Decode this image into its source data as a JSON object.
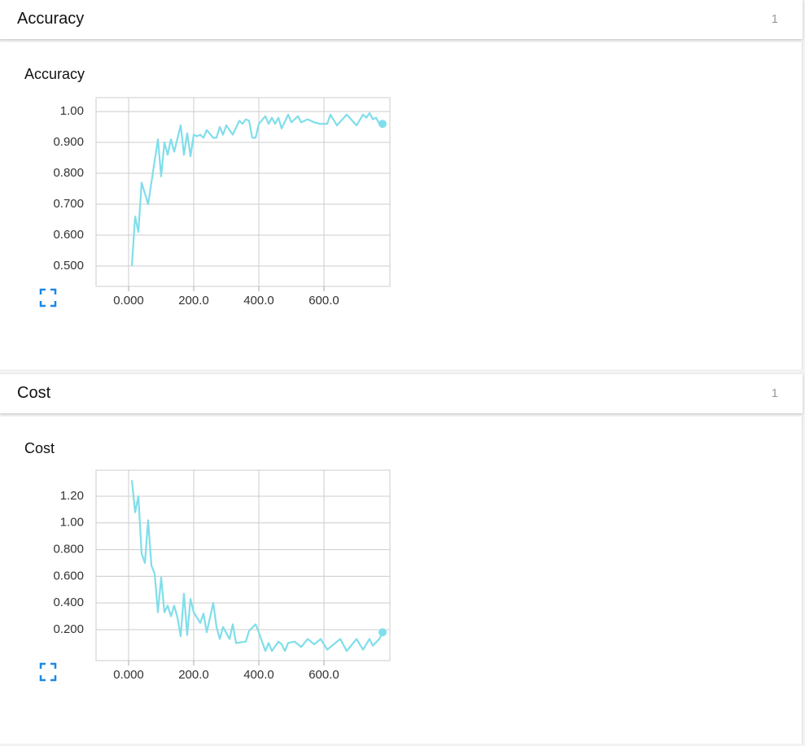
{
  "panels": [
    {
      "title": "Accuracy",
      "count": 1
    },
    {
      "title": "Cost",
      "count": 1
    }
  ],
  "chart_data": [
    {
      "type": "line",
      "title": "Accuracy",
      "x": [
        10,
        20,
        30,
        40,
        60,
        90,
        100,
        110,
        120,
        130,
        140,
        160,
        170,
        180,
        190,
        200,
        210,
        220,
        230,
        240,
        260,
        270,
        280,
        290,
        300,
        320,
        340,
        350,
        360,
        370,
        380,
        390,
        400,
        420,
        430,
        440,
        450,
        460,
        470,
        490,
        500,
        520,
        530,
        550,
        570,
        590,
        610,
        620,
        640,
        670,
        700,
        720,
        730,
        740,
        750,
        760,
        770,
        780
      ],
      "series": [
        {
          "color": "#80deea",
          "values": [
            0.5,
            0.66,
            0.61,
            0.77,
            0.7,
            0.91,
            0.79,
            0.9,
            0.86,
            0.91,
            0.87,
            0.955,
            0.86,
            0.93,
            0.855,
            0.925,
            0.92,
            0.925,
            0.915,
            0.94,
            0.915,
            0.915,
            0.95,
            0.925,
            0.955,
            0.925,
            0.97,
            0.96,
            0.975,
            0.97,
            0.915,
            0.915,
            0.96,
            0.985,
            0.96,
            0.98,
            0.96,
            0.98,
            0.945,
            0.99,
            0.965,
            0.985,
            0.965,
            0.975,
            0.965,
            0.96,
            0.96,
            0.99,
            0.955,
            0.99,
            0.955,
            0.99,
            0.98,
            0.995,
            0.975,
            0.98,
            0.96,
            0.96
          ]
        }
      ],
      "xlim": [
        -100,
        802.5
      ],
      "ylim": [
        0.434,
        1.045
      ],
      "xticks": [
        {
          "value": 0,
          "label": "0.000"
        },
        {
          "value": 200,
          "label": "200.0"
        },
        {
          "value": 400,
          "label": "400.0"
        },
        {
          "value": 600,
          "label": "600.0"
        }
      ],
      "yticks": [
        {
          "value": 0.5,
          "label": "0.500"
        },
        {
          "value": 0.6,
          "label": "0.600"
        },
        {
          "value": 0.7,
          "label": "0.700"
        },
        {
          "value": 0.8,
          "label": "0.800"
        },
        {
          "value": 0.9,
          "label": "0.900"
        },
        {
          "value": 1,
          "label": "1.00"
        }
      ],
      "grid": true
    },
    {
      "type": "line",
      "title": "Cost",
      "x": [
        10,
        20,
        30,
        40,
        50,
        60,
        70,
        80,
        90,
        100,
        110,
        120,
        130,
        140,
        150,
        160,
        170,
        180,
        190,
        200,
        220,
        230,
        240,
        260,
        270,
        280,
        290,
        310,
        320,
        330,
        360,
        370,
        390,
        400,
        410,
        420,
        430,
        440,
        460,
        470,
        480,
        490,
        510,
        530,
        550,
        570,
        590,
        610,
        630,
        650,
        670,
        700,
        720,
        740,
        750,
        770,
        780
      ],
      "series": [
        {
          "color": "#80deea",
          "values": [
            1.32,
            1.08,
            1.2,
            0.77,
            0.7,
            1.02,
            0.68,
            0.62,
            0.33,
            0.59,
            0.33,
            0.38,
            0.3,
            0.38,
            0.29,
            0.15,
            0.47,
            0.16,
            0.43,
            0.33,
            0.25,
            0.32,
            0.18,
            0.4,
            0.22,
            0.13,
            0.22,
            0.13,
            0.24,
            0.1,
            0.11,
            0.19,
            0.24,
            0.18,
            0.11,
            0.04,
            0.1,
            0.04,
            0.11,
            0.09,
            0.04,
            0.1,
            0.11,
            0.07,
            0.13,
            0.09,
            0.13,
            0.05,
            0.09,
            0.13,
            0.04,
            0.13,
            0.05,
            0.13,
            0.08,
            0.13,
            0.18
          ]
        }
      ],
      "xlim": [
        -100,
        802.5
      ],
      "ylim": [
        -0.032,
        1.395
      ],
      "xticks": [
        {
          "value": 0,
          "label": "0.000"
        },
        {
          "value": 200,
          "label": "200.0"
        },
        {
          "value": 400,
          "label": "400.0"
        },
        {
          "value": 600,
          "label": "600.0"
        }
      ],
      "yticks": [
        {
          "value": 0.2,
          "label": "0.200"
        },
        {
          "value": 0.4,
          "label": "0.400"
        },
        {
          "value": 0.6,
          "label": "0.600"
        },
        {
          "value": 0.8,
          "label": "0.800"
        },
        {
          "value": 1,
          "label": "1.00"
        },
        {
          "value": 1.2,
          "label": "1.20"
        }
      ],
      "grid": true
    }
  ]
}
